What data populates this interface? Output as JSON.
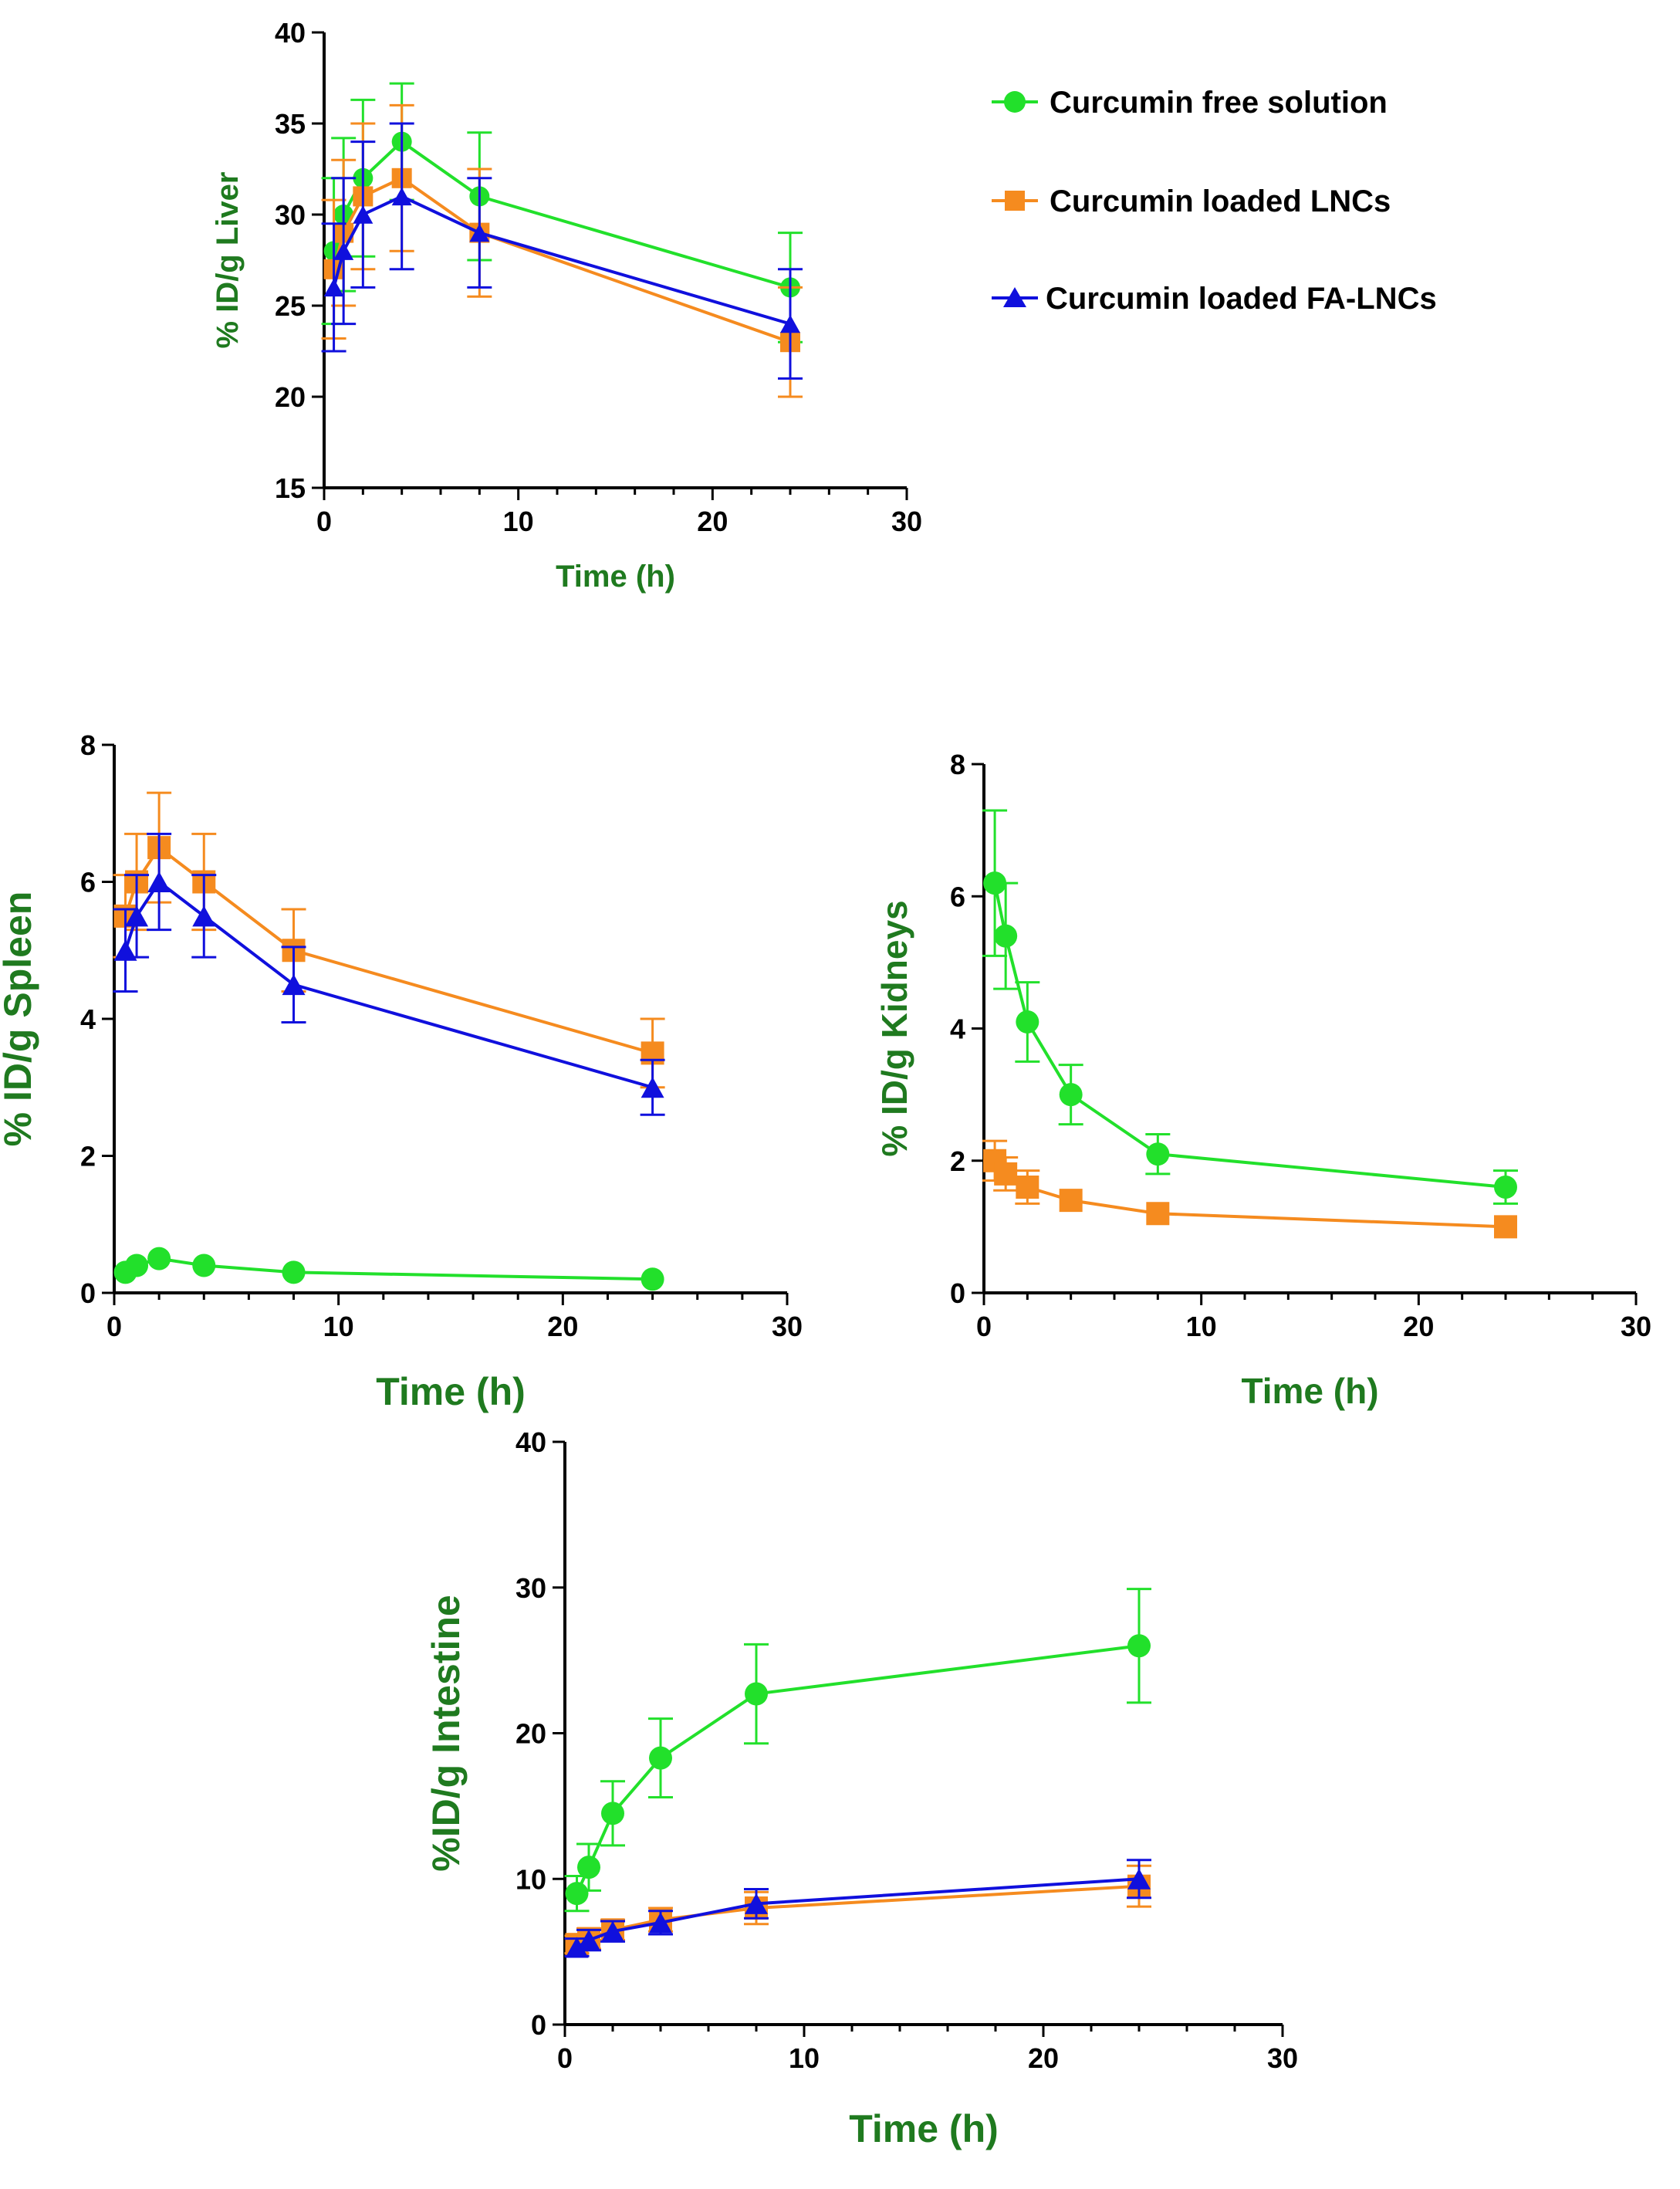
{
  "colors": {
    "free": "#22e02b",
    "lnc": "#f58b1f",
    "fa": "#1010dd",
    "axis_title": "#1f7a1f"
  },
  "legend": [
    {
      "key": "free",
      "label": "Curcumin free solution",
      "marker": "circle"
    },
    {
      "key": "lnc",
      "label": "Curcumin loaded LNCs",
      "marker": "square"
    },
    {
      "key": "fa",
      "label": "Curcumin loaded FA-LNCs",
      "marker": "triangle"
    }
  ],
  "chart_data": [
    {
      "id": "liver",
      "type": "line",
      "xlabel": "Time (h)",
      "ylabel": "% ID/g Liver",
      "xlim": [
        0,
        30
      ],
      "xticks": [
        0,
        10,
        20,
        30
      ],
      "ylim": [
        15,
        40
      ],
      "yticks": [
        15,
        20,
        25,
        30,
        35,
        40
      ],
      "series": [
        {
          "key": "free",
          "name": "Curcumin free solution",
          "x": [
            0.5,
            1,
            2,
            4,
            8,
            24
          ],
          "y": [
            28,
            30,
            32,
            34,
            31,
            26
          ],
          "err": [
            4,
            4.2,
            4.3,
            3.2,
            3.5,
            3
          ]
        },
        {
          "key": "lnc",
          "name": "Curcumin loaded LNCs",
          "x": [
            0.5,
            1,
            2,
            4,
            8,
            24
          ],
          "y": [
            27,
            29,
            31,
            32,
            29,
            23
          ],
          "err": [
            3.8,
            4,
            4,
            4,
            3.5,
            3
          ]
        },
        {
          "key": "fa",
          "name": "Curcumin loaded FA-LNCs",
          "x": [
            0.5,
            1,
            2,
            4,
            8,
            24
          ],
          "y": [
            26,
            28,
            30,
            31,
            29,
            24
          ],
          "err": [
            3.5,
            4,
            4,
            4,
            3,
            3
          ]
        }
      ]
    },
    {
      "id": "spleen",
      "type": "line",
      "xlabel": "Time (h)",
      "ylabel": "% ID/g Spleen",
      "xlim": [
        0,
        30
      ],
      "xticks": [
        0,
        10,
        20,
        30
      ],
      "ylim": [
        0,
        8
      ],
      "yticks": [
        0,
        2,
        4,
        6,
        8
      ],
      "series": [
        {
          "key": "free",
          "name": "Curcumin free solution",
          "x": [
            0.5,
            1,
            2,
            4,
            8,
            24
          ],
          "y": [
            0.3,
            0.4,
            0.5,
            0.4,
            0.3,
            0.2
          ],
          "err": [
            0,
            0,
            0,
            0,
            0,
            0
          ]
        },
        {
          "key": "lnc",
          "name": "Curcumin loaded LNCs",
          "x": [
            0.5,
            1,
            2,
            4,
            8,
            24
          ],
          "y": [
            5.5,
            6,
            6.5,
            6,
            5,
            3.5
          ],
          "err": [
            0.6,
            0.7,
            0.8,
            0.7,
            0.6,
            0.5
          ]
        },
        {
          "key": "fa",
          "name": "Curcumin loaded FA-LNCs",
          "x": [
            0.5,
            1,
            2,
            4,
            8,
            24
          ],
          "y": [
            5,
            5.5,
            6,
            5.5,
            4.5,
            3
          ],
          "err": [
            0.6,
            0.6,
            0.7,
            0.6,
            0.55,
            0.4
          ]
        }
      ]
    },
    {
      "id": "kidneys",
      "type": "line",
      "xlabel": "Time (h)",
      "ylabel": "% ID/g Kidneys",
      "xlim": [
        0,
        30
      ],
      "xticks": [
        0,
        10,
        20,
        30
      ],
      "ylim": [
        0,
        8
      ],
      "yticks": [
        0,
        2,
        4,
        6,
        8
      ],
      "series": [
        {
          "key": "free",
          "name": "Curcumin free solution",
          "x": [
            0.5,
            1,
            2,
            4,
            8,
            24
          ],
          "y": [
            6.2,
            5.4,
            4.1,
            3,
            2.1,
            1.6
          ],
          "err": [
            1.1,
            0.8,
            0.6,
            0.45,
            0.3,
            0.25
          ]
        },
        {
          "key": "lnc",
          "name": "Curcumin loaded LNCs",
          "x": [
            0.5,
            1,
            2,
            4,
            8,
            24
          ],
          "y": [
            2,
            1.8,
            1.6,
            1.4,
            1.2,
            1
          ],
          "err": [
            0.3,
            0.25,
            0.25,
            0,
            0,
            0
          ]
        }
      ]
    },
    {
      "id": "intestine",
      "type": "line",
      "xlabel": "Time (h)",
      "ylabel": "%ID/g Intestine",
      "xlim": [
        0,
        30
      ],
      "xticks": [
        0,
        10,
        20,
        30
      ],
      "ylim": [
        0,
        40
      ],
      "yticks": [
        0,
        10,
        20,
        30,
        40
      ],
      "series": [
        {
          "key": "free",
          "name": "Curcumin free solution",
          "x": [
            0.5,
            1,
            2,
            4,
            8,
            24
          ],
          "y": [
            9,
            10.8,
            14.5,
            18.3,
            22.7,
            26
          ],
          "err": [
            1.2,
            1.6,
            2.2,
            2.7,
            3.4,
            3.9
          ]
        },
        {
          "key": "lnc",
          "name": "Curcumin loaded LNCs",
          "x": [
            0.5,
            1,
            2,
            4,
            8,
            24
          ],
          "y": [
            5.5,
            5.9,
            6.5,
            7.2,
            8,
            9.5
          ],
          "err": [
            0.6,
            0.7,
            0.7,
            0.8,
            1.1,
            1.4
          ]
        },
        {
          "key": "fa",
          "name": "Curcumin loaded FA-LNCs",
          "x": [
            0.5,
            1,
            2,
            4,
            8,
            24
          ],
          "y": [
            5.3,
            5.8,
            6.4,
            7,
            8.3,
            10
          ],
          "err": [
            0.6,
            0.7,
            0.7,
            0.8,
            1,
            1.3
          ]
        }
      ]
    }
  ]
}
